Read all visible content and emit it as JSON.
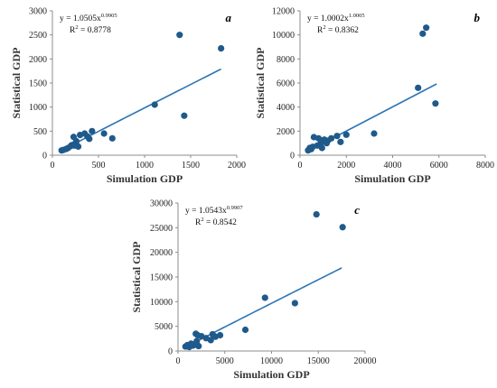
{
  "chart_data": [
    {
      "type": "scatter",
      "panel_label": "a",
      "xlabel": "Simulation GDP",
      "ylabel": "Statistical GDP",
      "xlim": [
        0,
        2000
      ],
      "ylim": [
        0,
        3000
      ],
      "xticks": [
        0,
        500,
        1000,
        1500,
        2000
      ],
      "yticks": [
        0,
        500,
        1000,
        1500,
        2000,
        2500,
        3000
      ],
      "xticklabels": [
        "0",
        "500",
        "1000",
        "1500",
        "2000"
      ],
      "yticklabels": [
        "0",
        "500",
        "1000",
        "1500",
        "2000",
        "2500",
        "3000"
      ],
      "equation": {
        "base": "y = 1.0505x",
        "exponent": "0.9905",
        "r2_label": "R",
        "r2_exponent": "2",
        "r2_value": " = 0.8778"
      },
      "fit": {
        "a": 1.0505,
        "b": 0.9905,
        "x_range": [
          100,
          1830
        ]
      },
      "points": [
        [
          100,
          100
        ],
        [
          120,
          110
        ],
        [
          150,
          130
        ],
        [
          170,
          150
        ],
        [
          200,
          190
        ],
        [
          210,
          210
        ],
        [
          230,
          380
        ],
        [
          240,
          200
        ],
        [
          250,
          250
        ],
        [
          260,
          290
        ],
        [
          280,
          180
        ],
        [
          300,
          420
        ],
        [
          350,
          450
        ],
        [
          380,
          390
        ],
        [
          400,
          340
        ],
        [
          430,
          500
        ],
        [
          560,
          450
        ],
        [
          650,
          350
        ],
        [
          1110,
          1050
        ],
        [
          1380,
          2500
        ],
        [
          1430,
          820
        ],
        [
          1830,
          2220
        ]
      ],
      "marker_color": "#1f5a8a",
      "line_color": "#2e75b6",
      "grid": false
    },
    {
      "type": "scatter",
      "panel_label": "b",
      "xlabel": "Simulation GDP",
      "ylabel": "Statistical GDP",
      "xlim": [
        0,
        8000
      ],
      "ylim": [
        0,
        12000
      ],
      "xticks": [
        0,
        2000,
        4000,
        6000,
        8000
      ],
      "yticks": [
        0,
        2000,
        4000,
        6000,
        8000,
        10000,
        12000
      ],
      "xticklabels": [
        "0",
        "2000",
        "4000",
        "6000",
        "8000"
      ],
      "yticklabels": [
        "0",
        "2000",
        "4000",
        "6000",
        "8000",
        "10000",
        "12000"
      ],
      "equation": {
        "base": "y = 1.0002x",
        "exponent": "1.0005",
        "r2_label": "R",
        "r2_exponent": "2",
        "r2_value": " = 0.8362"
      },
      "fit": {
        "a": 1.0002,
        "b": 1.0005,
        "x_range": [
          300,
          5900
        ]
      },
      "points": [
        [
          350,
          400
        ],
        [
          420,
          600
        ],
        [
          480,
          500
        ],
        [
          550,
          700
        ],
        [
          600,
          1500
        ],
        [
          750,
          800
        ],
        [
          800,
          1400
        ],
        [
          900,
          1000
        ],
        [
          950,
          600
        ],
        [
          1050,
          1300
        ],
        [
          1150,
          1000
        ],
        [
          1200,
          1200
        ],
        [
          1350,
          1400
        ],
        [
          1600,
          1600
        ],
        [
          1750,
          1100
        ],
        [
          2000,
          1700
        ],
        [
          3200,
          1800
        ],
        [
          5100,
          5600
        ],
        [
          5300,
          10100
        ],
        [
          5450,
          10600
        ],
        [
          5850,
          4300
        ]
      ],
      "marker_color": "#1f5a8a",
      "line_color": "#2e75b6",
      "grid": false
    },
    {
      "type": "scatter",
      "panel_label": "c",
      "xlabel": "Simulation GDP",
      "ylabel": "Statistical GDP",
      "xlim": [
        0,
        20000
      ],
      "ylim": [
        0,
        30000
      ],
      "xticks": [
        0,
        5000,
        10000,
        15000,
        20000
      ],
      "yticks": [
        0,
        5000,
        10000,
        15000,
        20000,
        25000,
        30000
      ],
      "xticklabels": [
        "0",
        "5000",
        "10000",
        "15000",
        "20000"
      ],
      "yticklabels": [
        "0",
        "5000",
        "10000",
        "15000",
        "20000",
        "25000",
        "30000"
      ],
      "equation": {
        "base": "y = 1.0543x",
        "exponent": "0.9907",
        "r2_label": "R",
        "r2_exponent": "2",
        "r2_value": " = 0.8542"
      },
      "fit": {
        "a": 1.0543,
        "b": 0.9907,
        "x_range": [
          700,
          17500
        ]
      },
      "points": [
        [
          800,
          900
        ],
        [
          1000,
          1200
        ],
        [
          1200,
          800
        ],
        [
          1400,
          1500
        ],
        [
          1600,
          1100
        ],
        [
          1800,
          1300
        ],
        [
          1900,
          3500
        ],
        [
          2000,
          2000
        ],
        [
          2100,
          3200
        ],
        [
          2200,
          1000
        ],
        [
          2500,
          3000
        ],
        [
          3000,
          2600
        ],
        [
          3500,
          2200
        ],
        [
          3700,
          3400
        ],
        [
          4000,
          2900
        ],
        [
          4500,
          3200
        ],
        [
          7200,
          4300
        ],
        [
          9300,
          10800
        ],
        [
          12500,
          9700
        ],
        [
          14800,
          27700
        ],
        [
          17600,
          25100
        ]
      ],
      "marker_color": "#1f5a8a",
      "line_color": "#2e75b6",
      "grid": false
    }
  ]
}
